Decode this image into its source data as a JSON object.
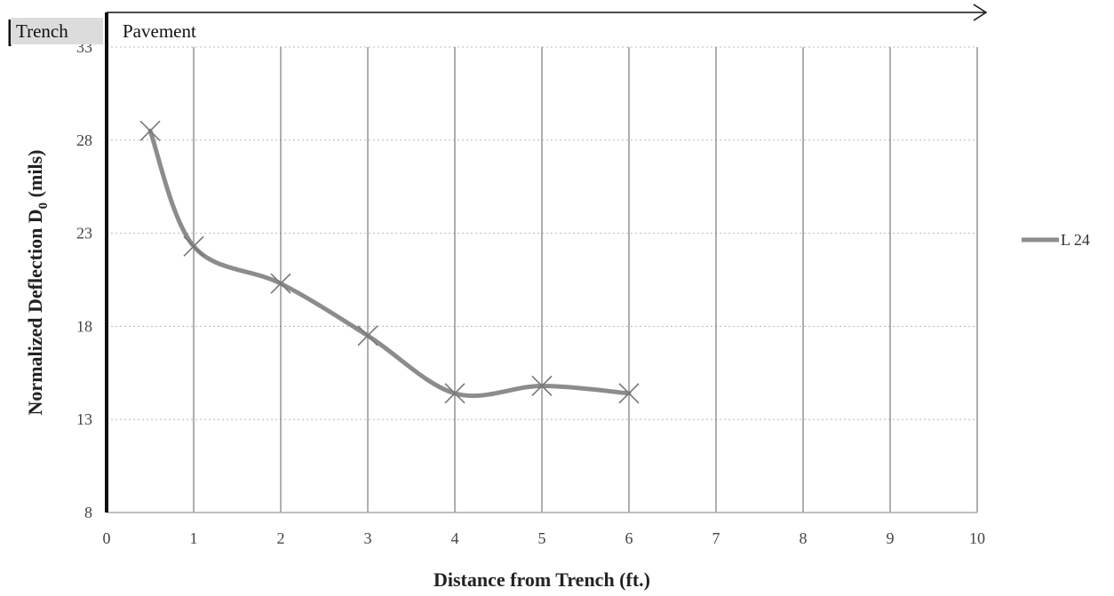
{
  "chart_data": {
    "type": "line",
    "xlabel": "Distance from Trench (ft.)",
    "ylabel_main": "Normalized Deflection D",
    "ylabel_sub": "0",
    "ylabel_unit": " (mils)",
    "xlim": [
      0,
      10
    ],
    "ylim": [
      8,
      33
    ],
    "x_ticks": [
      0,
      1,
      2,
      3,
      4,
      5,
      6,
      7,
      8,
      9,
      10
    ],
    "y_ticks": [
      8,
      13,
      18,
      23,
      28,
      33
    ],
    "zone_labels": {
      "trench": "Trench",
      "pavement": "Pavement"
    },
    "grid": true,
    "legend_position": "right",
    "series": [
      {
        "name": "L 24",
        "color": "#8c8c8c",
        "marker": "x",
        "smooth": true,
        "x": [
          0.5,
          1,
          2,
          3,
          4,
          5,
          6
        ],
        "y": [
          28.5,
          22.3,
          20.3,
          17.5,
          14.4,
          14.8,
          14.4
        ]
      }
    ]
  }
}
